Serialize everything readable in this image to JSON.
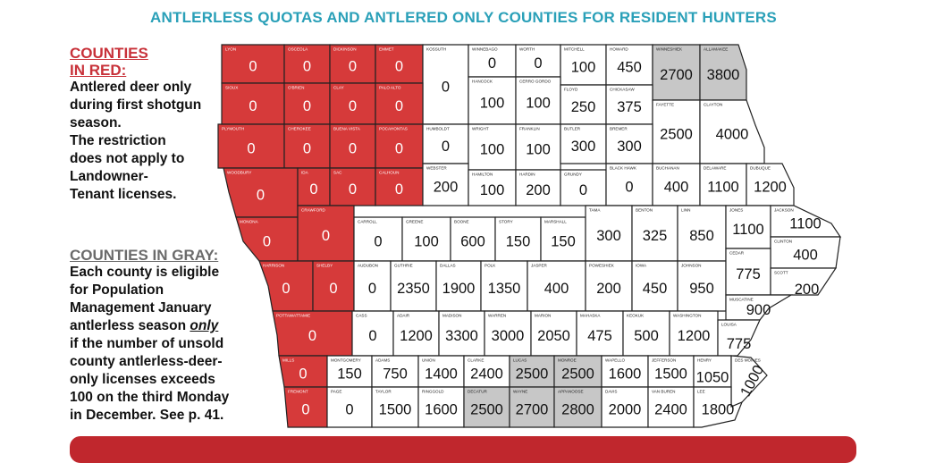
{
  "title": "ANTLERLESS QUOTAS AND ANTLERED ONLY COUNTIES FOR RESIDENT HUNTERS",
  "legend_red": {
    "heading_line1": "COUNTIES",
    "heading_line2": "IN RED:",
    "body": [
      "Antlered deer only",
      "during first shotgun",
      "season.",
      "The restriction",
      "does not apply to",
      "Landowner-",
      "Tenant licenses."
    ],
    "color": "#d63a3a"
  },
  "legend_gray": {
    "heading": "COUNTIES IN GRAY:",
    "body_before_em": [
      "Each county is eligible",
      "for Population",
      "Management January",
      "antlerless season "
    ],
    "em": "only",
    "body_after_em": [
      "if the number of unsold",
      "county antlerless-deer-",
      "only licenses exceeds",
      "100 on the third Monday",
      "in December. See p. 41."
    ],
    "color": "#c7c7c7"
  },
  "counties": [
    {
      "id": "lyon",
      "label": "LYON",
      "value": "0",
      "status": "red"
    },
    {
      "id": "osceola",
      "label": "OSCEOLA",
      "value": "0",
      "status": "red"
    },
    {
      "id": "dickinson",
      "label": "DICKINSON",
      "value": "0",
      "status": "red"
    },
    {
      "id": "emmet",
      "label": "EMMET",
      "value": "0",
      "status": "red"
    },
    {
      "id": "kossuth",
      "label": "KOSSUTH",
      "value": "0",
      "status": "normal"
    },
    {
      "id": "winnebago",
      "label": "WINNEBAGO",
      "value": "0",
      "status": "normal"
    },
    {
      "id": "worth",
      "label": "WORTH",
      "value": "0",
      "status": "normal"
    },
    {
      "id": "mitchell",
      "label": "MITCHELL",
      "value": "100",
      "status": "normal"
    },
    {
      "id": "howard",
      "label": "HOWARD",
      "value": "450",
      "status": "normal"
    },
    {
      "id": "winneshiek",
      "label": "WINNESHIEK",
      "value": "2700",
      "status": "gray"
    },
    {
      "id": "allamakee",
      "label": "ALLAMAKEE",
      "value": "3800",
      "status": "gray"
    },
    {
      "id": "sioux",
      "label": "SIOUX",
      "value": "0",
      "status": "red"
    },
    {
      "id": "obrien",
      "label": "O'BRIEN",
      "value": "0",
      "status": "red"
    },
    {
      "id": "clay",
      "label": "CLAY",
      "value": "0",
      "status": "red"
    },
    {
      "id": "paloalto",
      "label": "PALO ALTO",
      "value": "0",
      "status": "red"
    },
    {
      "id": "hancock",
      "label": "HANCOCK",
      "value": "100",
      "status": "normal"
    },
    {
      "id": "cerrogordo",
      "label": "CERRO GORDO",
      "value": "100",
      "status": "normal"
    },
    {
      "id": "floyd",
      "label": "FLOYD",
      "value": "250",
      "status": "normal"
    },
    {
      "id": "chickasaw",
      "label": "CHICKASAW",
      "value": "375",
      "status": "normal"
    },
    {
      "id": "fayette",
      "label": "FAYETTE",
      "value": "2500",
      "status": "normal"
    },
    {
      "id": "clayton",
      "label": "CLAYTON",
      "value": "4000",
      "status": "normal"
    },
    {
      "id": "plymouth",
      "label": "PLYMOUTH",
      "value": "0",
      "status": "red"
    },
    {
      "id": "cherokee",
      "label": "CHEROKEE",
      "value": "0",
      "status": "red"
    },
    {
      "id": "buenavista",
      "label": "BUENA VISTA",
      "value": "0",
      "status": "red"
    },
    {
      "id": "pocahontas",
      "label": "POCAHONTAS",
      "value": "0",
      "status": "red"
    },
    {
      "id": "humboldt",
      "label": "HUMBOLDT",
      "value": "0",
      "status": "normal"
    },
    {
      "id": "wright",
      "label": "WRIGHT",
      "value": "100",
      "status": "normal"
    },
    {
      "id": "franklin",
      "label": "FRANKLIN",
      "value": "100",
      "status": "normal"
    },
    {
      "id": "butler",
      "label": "BUTLER",
      "value": "300",
      "status": "normal"
    },
    {
      "id": "bremer",
      "label": "BREMER",
      "value": "300",
      "status": "normal"
    },
    {
      "id": "woodbury",
      "label": "WOODBURY",
      "value": "0",
      "status": "red"
    },
    {
      "id": "ida",
      "label": "IDA",
      "value": "0",
      "status": "red"
    },
    {
      "id": "sac",
      "label": "SAC",
      "value": "0",
      "status": "red"
    },
    {
      "id": "calhoun",
      "label": "CALHOUN",
      "value": "0",
      "status": "red"
    },
    {
      "id": "webster",
      "label": "WEBSTER",
      "value": "200",
      "status": "normal"
    },
    {
      "id": "hamilton",
      "label": "HAMILTON",
      "value": "100",
      "status": "normal"
    },
    {
      "id": "hardin",
      "label": "HARDIN",
      "value": "200",
      "status": "normal"
    },
    {
      "id": "grundy",
      "label": "GRUNDY",
      "value": "0",
      "status": "normal"
    },
    {
      "id": "blackhawk",
      "label": "BLACK HAWK",
      "value": "0",
      "status": "normal"
    },
    {
      "id": "buchanan",
      "label": "BUCHANAN",
      "value": "400",
      "status": "normal"
    },
    {
      "id": "delaware",
      "label": "DELAWARE",
      "value": "1100",
      "status": "normal"
    },
    {
      "id": "dubuque",
      "label": "DUBUQUE",
      "value": "1200",
      "status": "normal"
    },
    {
      "id": "monona",
      "label": "MONONA",
      "value": "0",
      "status": "red"
    },
    {
      "id": "crawford",
      "label": "CRAWFORD",
      "value": "0",
      "status": "red"
    },
    {
      "id": "carroll",
      "label": "CARROLL",
      "value": "0",
      "status": "normal"
    },
    {
      "id": "greene",
      "label": "GREENE",
      "value": "100",
      "status": "normal"
    },
    {
      "id": "boone",
      "label": "BOONE",
      "value": "600",
      "status": "normal"
    },
    {
      "id": "story",
      "label": "STORY",
      "value": "150",
      "status": "normal"
    },
    {
      "id": "marshall",
      "label": "MARSHALL",
      "value": "150",
      "status": "normal"
    },
    {
      "id": "tama",
      "label": "TAMA",
      "value": "300",
      "status": "normal"
    },
    {
      "id": "benton",
      "label": "BENTON",
      "value": "325",
      "status": "normal"
    },
    {
      "id": "linn",
      "label": "LINN",
      "value": "850",
      "status": "normal"
    },
    {
      "id": "jones",
      "label": "JONES",
      "value": "1100",
      "status": "normal"
    },
    {
      "id": "jackson",
      "label": "JACKSON",
      "value": "1100",
      "status": "normal"
    },
    {
      "id": "clinton",
      "label": "CLINTON",
      "value": "400",
      "status": "normal"
    },
    {
      "id": "harrison",
      "label": "HARRISON",
      "value": "0",
      "status": "red"
    },
    {
      "id": "shelby",
      "label": "SHELBY",
      "value": "0",
      "status": "red"
    },
    {
      "id": "audubon",
      "label": "AUDUBON",
      "value": "0",
      "status": "normal"
    },
    {
      "id": "guthrie",
      "label": "GUTHRIE",
      "value": "2350",
      "status": "normal"
    },
    {
      "id": "dallas",
      "label": "DALLAS",
      "value": "1900",
      "status": "normal"
    },
    {
      "id": "polk",
      "label": "POLK",
      "value": "1350",
      "status": "normal"
    },
    {
      "id": "jasper",
      "label": "JASPER",
      "value": "400",
      "status": "normal"
    },
    {
      "id": "poweshiek",
      "label": "POWESHIEK",
      "value": "200",
      "status": "normal"
    },
    {
      "id": "iowa",
      "label": "IOWA",
      "value": "450",
      "status": "normal"
    },
    {
      "id": "johnson",
      "label": "JOHNSON",
      "value": "950",
      "status": "normal"
    },
    {
      "id": "cedar",
      "label": "CEDAR",
      "value": "775",
      "status": "normal"
    },
    {
      "id": "scott",
      "label": "SCOTT",
      "value": "200",
      "status": "normal"
    },
    {
      "id": "muscatine",
      "label": "MUSCATINE",
      "value": "900",
      "status": "normal"
    },
    {
      "id": "pottawattamie",
      "label": "POTTAWATTAMIE",
      "value": "0",
      "status": "red"
    },
    {
      "id": "cass",
      "label": "CASS",
      "value": "0",
      "status": "normal"
    },
    {
      "id": "adair",
      "label": "ADAIR",
      "value": "1200",
      "status": "normal"
    },
    {
      "id": "madison",
      "label": "MADISON",
      "value": "3300",
      "status": "normal"
    },
    {
      "id": "warren",
      "label": "WARREN",
      "value": "3000",
      "status": "normal"
    },
    {
      "id": "marion",
      "label": "MARION",
      "value": "2050",
      "status": "normal"
    },
    {
      "id": "mahaska",
      "label": "MAHASKA",
      "value": "475",
      "status": "normal"
    },
    {
      "id": "keokuk",
      "label": "KEOKUK",
      "value": "500",
      "status": "normal"
    },
    {
      "id": "washington",
      "label": "WASHINGTON",
      "value": "1200",
      "status": "normal"
    },
    {
      "id": "louisa",
      "label": "LOUISA",
      "value": "775",
      "status": "normal"
    },
    {
      "id": "mills",
      "label": "MILLS",
      "value": "0",
      "status": "red"
    },
    {
      "id": "montgomery",
      "label": "MONTGOMERY",
      "value": "150",
      "status": "normal"
    },
    {
      "id": "adams",
      "label": "ADAMS",
      "value": "750",
      "status": "normal"
    },
    {
      "id": "union",
      "label": "UNION",
      "value": "1400",
      "status": "normal"
    },
    {
      "id": "clarke",
      "label": "CLARKE",
      "value": "2400",
      "status": "normal"
    },
    {
      "id": "lucas",
      "label": "LUCAS",
      "value": "2500",
      "status": "gray"
    },
    {
      "id": "monroe",
      "label": "MONROE",
      "value": "2500",
      "status": "gray"
    },
    {
      "id": "wapello",
      "label": "WAPELLO",
      "value": "1600",
      "status": "normal"
    },
    {
      "id": "jefferson",
      "label": "JEFFERSON",
      "value": "1500",
      "status": "normal"
    },
    {
      "id": "henry",
      "label": "HENRY",
      "value": "1050",
      "status": "normal"
    },
    {
      "id": "desmoines",
      "label": "DES MOINES",
      "value": "1000",
      "status": "normal"
    },
    {
      "id": "fremont",
      "label": "FREMONT",
      "value": "0",
      "status": "red"
    },
    {
      "id": "page",
      "label": "PAGE",
      "value": "0",
      "status": "normal"
    },
    {
      "id": "taylor",
      "label": "TAYLOR",
      "value": "1500",
      "status": "normal"
    },
    {
      "id": "ringgold",
      "label": "RINGGOLD",
      "value": "1600",
      "status": "normal"
    },
    {
      "id": "decatur",
      "label": "DECATUR",
      "value": "2500",
      "status": "gray"
    },
    {
      "id": "wayne",
      "label": "WAYNE",
      "value": "2700",
      "status": "gray"
    },
    {
      "id": "appanoose",
      "label": "APPANOOSE",
      "value": "2800",
      "status": "gray"
    },
    {
      "id": "davis",
      "label": "DAVIS",
      "value": "2000",
      "status": "normal"
    },
    {
      "id": "vanburen",
      "label": "VAN BUREN",
      "value": "2400",
      "status": "normal"
    },
    {
      "id": "lee",
      "label": "LEE",
      "value": "1800",
      "status": "normal"
    }
  ],
  "colors": {
    "title": "#2aa0b8",
    "red": "#d63a3a",
    "gray": "#c7c7c7",
    "normal": "#ffffff",
    "border": "#222222",
    "bar": "#c0272d"
  }
}
